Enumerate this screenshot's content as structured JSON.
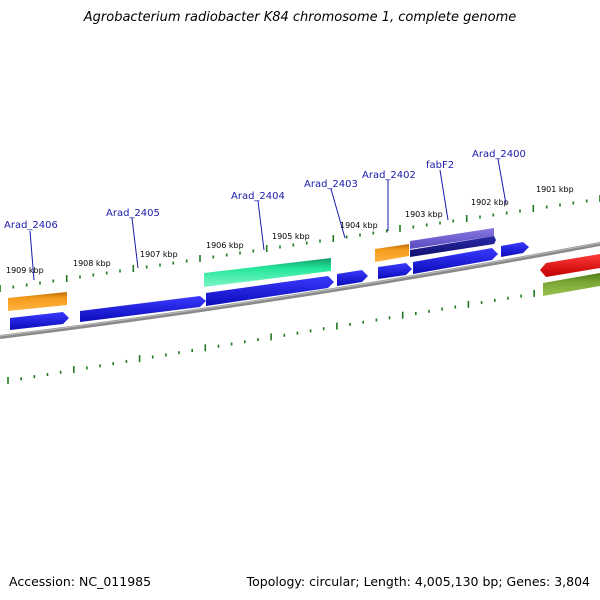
{
  "title": "Agrobacterium radiobacter K84 chromosome 1, complete genome",
  "footer": {
    "accession": "Accession: NC_011985",
    "summary": "Topology: circular; Length: 4,005,130 bp; Genes: 3,804"
  },
  "colors": {
    "forward": "#1212dd",
    "orange": "#f08c10",
    "green": "#22e69a",
    "purple": "#6a5acd",
    "navy": "#1a1a90",
    "red": "#e01010",
    "olive": "#6f9a2a",
    "backbone": "#8a8a8a",
    "tick": "#1f7a1f",
    "label": "#1a1aaa"
  },
  "kbp_labels": [
    "1909 kbp",
    "1908 kbp",
    "1907 kbp",
    "1906 kbp",
    "1905 kbp",
    "1904 kbp",
    "1903 kbp",
    "1902 kbp",
    "1901 kbp"
  ],
  "gene_labels": [
    {
      "name": "Arad_2406"
    },
    {
      "name": "Arad_2405"
    },
    {
      "name": "Arad_2404"
    },
    {
      "name": "Arad_2403"
    },
    {
      "name": "Arad_2402"
    },
    {
      "name": "fabF2"
    },
    {
      "name": "Arad_2400"
    }
  ]
}
